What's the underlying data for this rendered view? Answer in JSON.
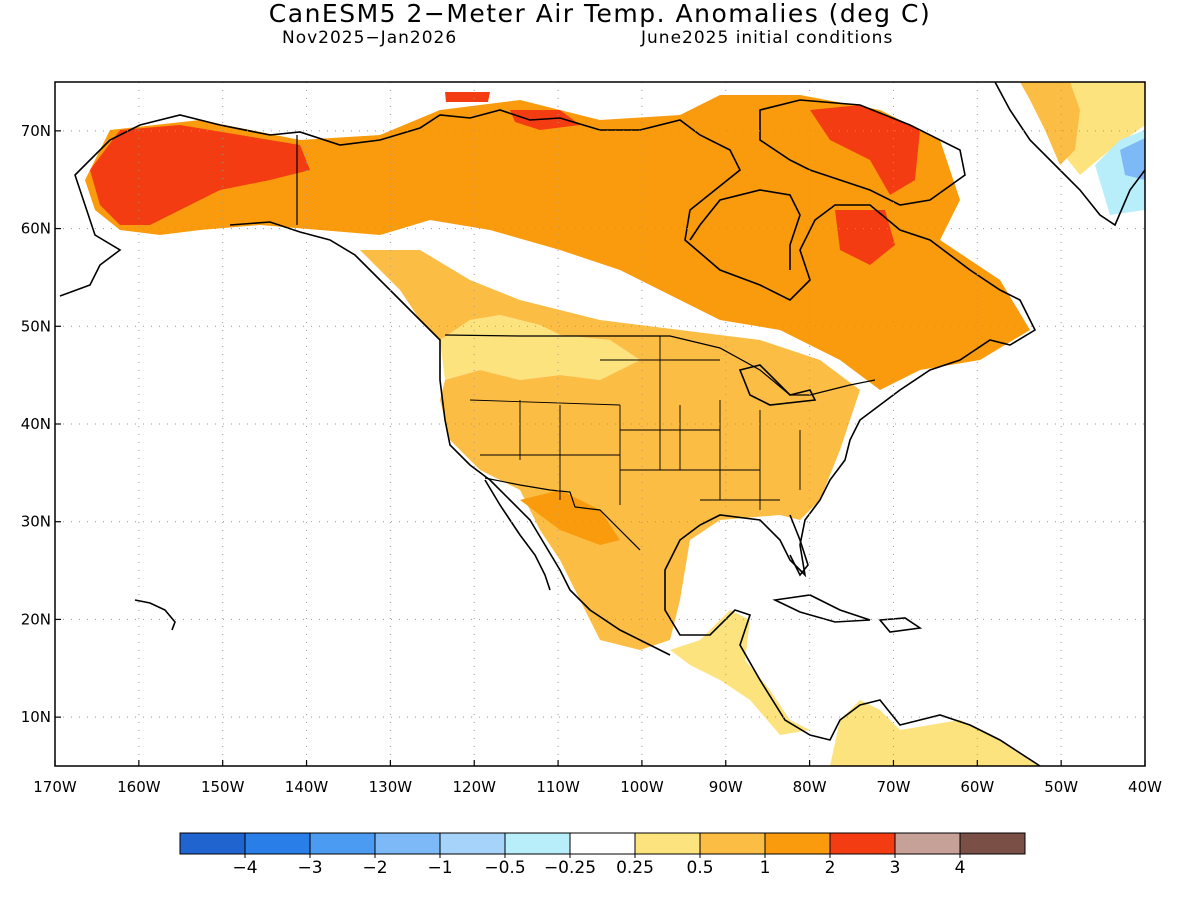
{
  "map": {
    "title": "CanESM5 2−Meter Air Temp. Anomalies (deg C)",
    "period": "Nov2025−Jan2026",
    "init": "June2025 initial conditions",
    "lat_labels": [
      "70N",
      "60N",
      "50N",
      "40N",
      "30N",
      "20N",
      "10N"
    ],
    "lat_values": [
      70,
      60,
      50,
      40,
      30,
      20,
      10
    ],
    "lon_labels": [
      "170W",
      "160W",
      "150W",
      "140W",
      "130W",
      "120W",
      "110W",
      "100W",
      "90W",
      "80W",
      "70W",
      "60W",
      "50W",
      "40W"
    ],
    "lon_values": [
      -170,
      -160,
      -150,
      -140,
      -130,
      -120,
      -110,
      -100,
      -90,
      -80,
      -70,
      -60,
      -50,
      -40
    ],
    "lat_range": [
      5,
      75
    ],
    "lon_range": [
      -170,
      -40
    ],
    "grid": true,
    "units": "deg C"
  },
  "colorbar": {
    "labels": [
      "−4",
      "−3",
      "−2",
      "−1",
      "−0.5",
      "−0.25",
      "0.25",
      "0.5",
      "1",
      "2",
      "3",
      "4"
    ],
    "colors": [
      "#1f64cf",
      "#2a7ee8",
      "#4b9bf2",
      "#7db9f6",
      "#a5d3f9",
      "#b7eefa",
      "#ffffff",
      "#fde37e",
      "#fcbd45",
      "#f99b0c",
      "#f43c12",
      "#c6a197",
      "#7a5046"
    ]
  },
  "colors": {
    "anom_025_05": "#fde37e",
    "anom_05_1": "#fcbd45",
    "anom_1_2": "#f99b0c",
    "anom_2_3": "#f43c12",
    "cold_05_025": "#b7eefa",
    "cold_1_05": "#a5d3f9",
    "cold_2_1": "#7db9f6"
  }
}
